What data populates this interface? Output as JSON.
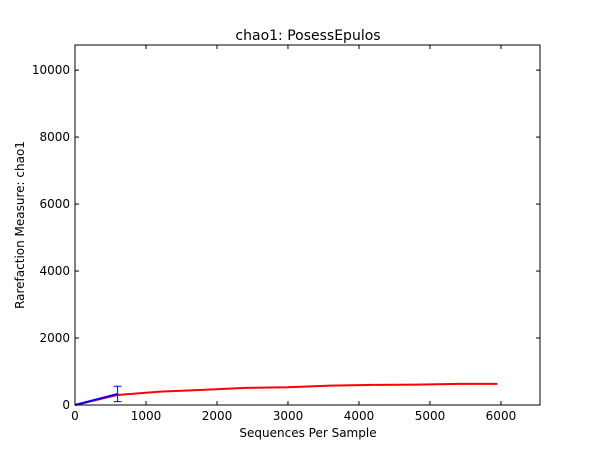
{
  "chart_data": {
    "type": "line",
    "title": "chao1: PosessEpulos",
    "xlabel": "Sequences Per Sample",
    "ylabel": "Rarefaction Measure: chao1",
    "xlim": [
      0,
      6550
    ],
    "ylim": [
      0,
      10750
    ],
    "xticks": [
      0,
      1000,
      2000,
      3000,
      4000,
      5000,
      6000
    ],
    "yticks": [
      0,
      2000,
      4000,
      6000,
      8000,
      10000
    ],
    "grid": false,
    "series": [
      {
        "color": "#ff0000",
        "x": [
          0,
          600,
          1200,
          1800,
          2400,
          3000,
          3600,
          4200,
          4800,
          5400,
          5950
        ],
        "y": [
          0,
          300,
          400,
          450,
          510,
          530,
          580,
          600,
          610,
          630,
          630
        ]
      },
      {
        "color": "#0000ff",
        "x": [
          0,
          600
        ],
        "y": [
          0,
          330
        ],
        "yerr": [
          0,
          230
        ]
      }
    ]
  }
}
